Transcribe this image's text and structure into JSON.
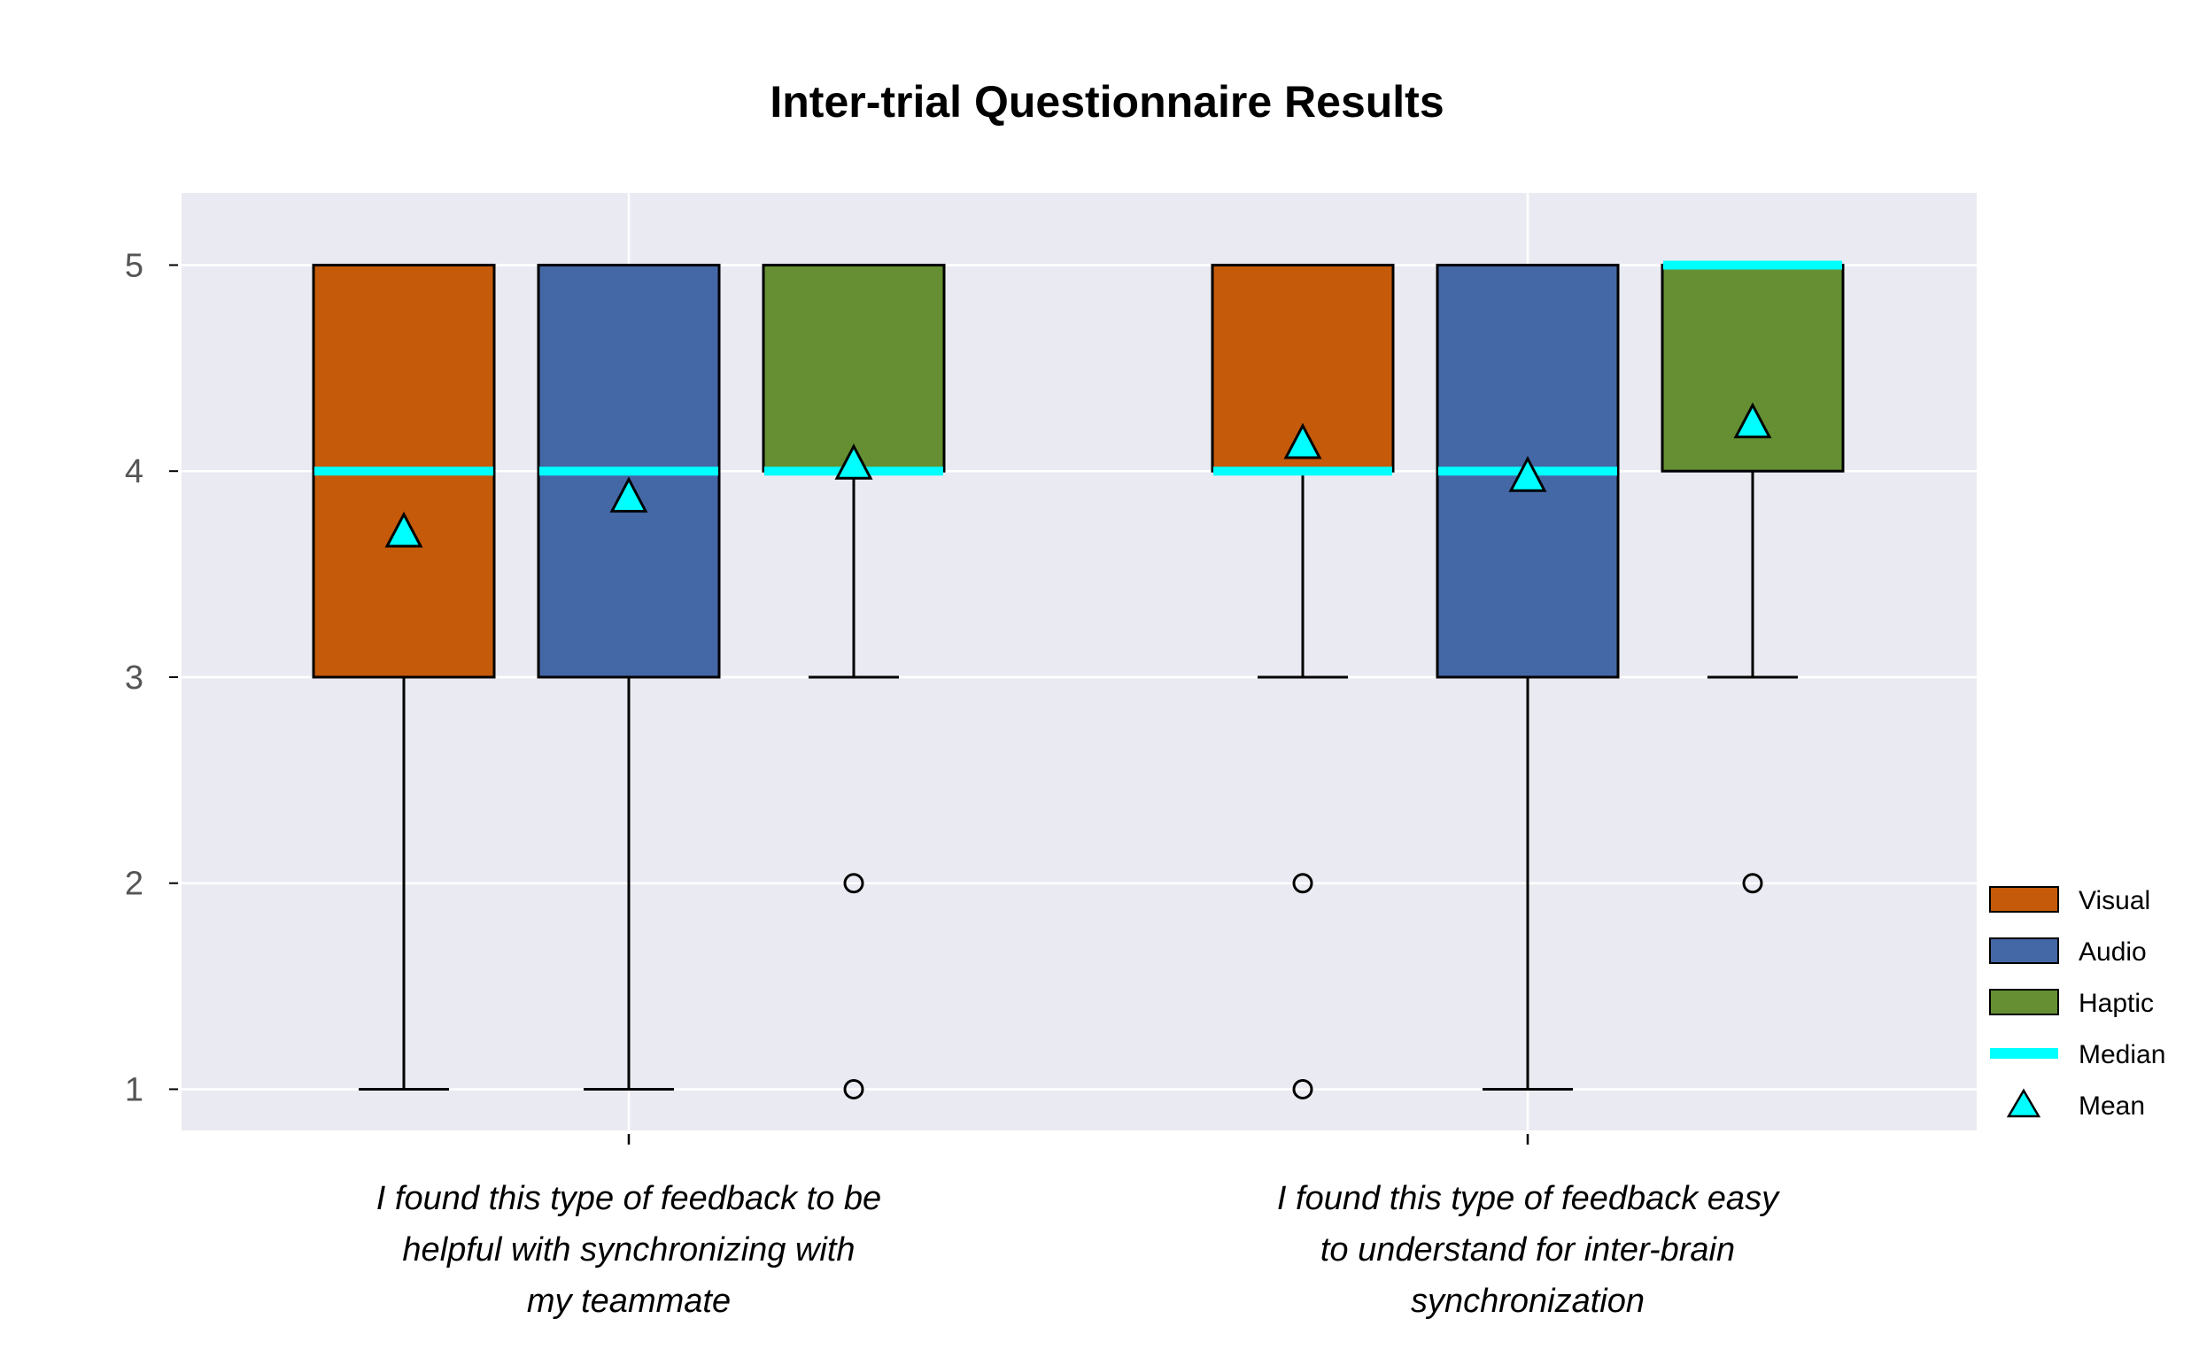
{
  "chart_data": {
    "type": "boxplot",
    "title": "Inter-trial Questionnaire Results",
    "xlabel": "",
    "ylabel": "",
    "ylim": [
      0.8,
      5.35
    ],
    "yticks": [
      1,
      2,
      3,
      4,
      5
    ],
    "grid": true,
    "legend_position": "bottom-right outside",
    "categories": [
      [
        "I found this type of feedback to be",
        "helpful with synchronizing with",
        "my teammate"
      ],
      [
        "I found this type of feedback easy",
        "to understand for inter-brain",
        "synchronization"
      ]
    ],
    "series": [
      {
        "name": "Visual",
        "color": "#c55a0a",
        "boxes": [
          {
            "whislo": 1,
            "q1": 3,
            "med": 4,
            "q3": 5,
            "whishi": 5,
            "mean": 3.7,
            "fliers": []
          },
          {
            "whislo": 3,
            "q1": 4,
            "med": 4,
            "q3": 5,
            "whishi": 5,
            "mean": 4.13,
            "fliers": [
              2,
              1
            ]
          }
        ]
      },
      {
        "name": "Audio",
        "color": "#4467a6",
        "boxes": [
          {
            "whislo": 1,
            "q1": 3,
            "med": 4,
            "q3": 5,
            "whishi": 5,
            "mean": 3.87,
            "fliers": []
          },
          {
            "whislo": 1,
            "q1": 3,
            "med": 4,
            "q3": 5,
            "whishi": 5,
            "mean": 3.97,
            "fliers": []
          }
        ]
      },
      {
        "name": "Haptic",
        "color": "#658f32",
        "boxes": [
          {
            "whislo": 3,
            "q1": 4,
            "med": 4,
            "q3": 5,
            "whishi": 5,
            "mean": 4.03,
            "fliers": [
              2,
              1
            ]
          },
          {
            "whislo": 3,
            "q1": 4,
            "med": 5,
            "q3": 5,
            "whishi": 5,
            "mean": 4.23,
            "fliers": [
              2
            ]
          }
        ]
      }
    ],
    "legend": [
      {
        "label": "Visual",
        "kind": "patch",
        "color": "#c55a0a"
      },
      {
        "label": "Audio",
        "kind": "patch",
        "color": "#4467a6"
      },
      {
        "label": "Haptic",
        "kind": "patch",
        "color": "#658f32"
      },
      {
        "label": "Median",
        "kind": "line",
        "color": "#00ffff"
      },
      {
        "label": "Mean",
        "kind": "triangle",
        "color": "#00ffff"
      }
    ],
    "colors": {
      "plot_background": "#eaeaf2",
      "grid": "#ffffff",
      "median": "#00ffff",
      "mean_marker": "#00ffff"
    }
  }
}
